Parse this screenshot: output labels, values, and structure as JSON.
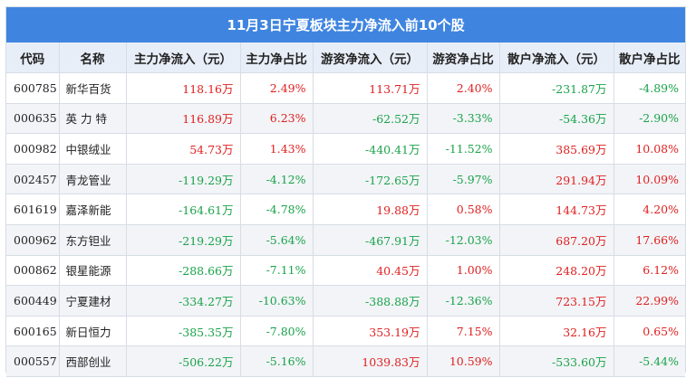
{
  "title": "11月3日宁夏板块主力净流入前10个股",
  "headers": [
    "代码",
    "名称",
    "主力净流入（元）",
    "主力净占比",
    "游资净流入（元）",
    "游资净占比",
    "散户净流入（元）",
    "散户净占比"
  ],
  "rows": [
    {
      "code": "600785",
      "name": "新华百货",
      "main_in": "118.16万",
      "main_pct": "2.49%",
      "hot_in": "113.71万",
      "hot_pct": "2.40%",
      "retail_in": "-231.87万",
      "retail_pct": "-4.89%"
    },
    {
      "code": "000635",
      "name": "英 力 特",
      "main_in": "116.89万",
      "main_pct": "6.23%",
      "hot_in": "-62.52万",
      "hot_pct": "-3.33%",
      "retail_in": "-54.36万",
      "retail_pct": "-2.90%"
    },
    {
      "code": "000982",
      "name": "中银绒业",
      "main_in": "54.73万",
      "main_pct": "1.43%",
      "hot_in": "-440.41万",
      "hot_pct": "-11.52%",
      "retail_in": "385.69万",
      "retail_pct": "10.08%"
    },
    {
      "code": "002457",
      "name": "青龙管业",
      "main_in": "-119.29万",
      "main_pct": "-4.12%",
      "hot_in": "-172.65万",
      "hot_pct": "-5.97%",
      "retail_in": "291.94万",
      "retail_pct": "10.09%"
    },
    {
      "code": "601619",
      "name": "嘉泽新能",
      "main_in": "-164.61万",
      "main_pct": "-4.78%",
      "hot_in": "19.88万",
      "hot_pct": "0.58%",
      "retail_in": "144.73万",
      "retail_pct": "4.20%"
    },
    {
      "code": "000962",
      "name": "东方钽业",
      "main_in": "-219.29万",
      "main_pct": "-5.64%",
      "hot_in": "-467.91万",
      "hot_pct": "-12.03%",
      "retail_in": "687.20万",
      "retail_pct": "17.66%"
    },
    {
      "code": "000862",
      "name": "银星能源",
      "main_in": "-288.66万",
      "main_pct": "-7.11%",
      "hot_in": "40.45万",
      "hot_pct": "1.00%",
      "retail_in": "248.20万",
      "retail_pct": "6.12%"
    },
    {
      "code": "600449",
      "name": "宁夏建材",
      "main_in": "-334.27万",
      "main_pct": "-10.63%",
      "hot_in": "-388.88万",
      "hot_pct": "-12.36%",
      "retail_in": "723.15万",
      "retail_pct": "22.99%"
    },
    {
      "code": "600165",
      "name": "新日恒力",
      "main_in": "-385.35万",
      "main_pct": "-7.80%",
      "hot_in": "353.19万",
      "hot_pct": "7.15%",
      "retail_in": "32.16万",
      "retail_pct": "0.65%"
    },
    {
      "code": "000557",
      "name": "西部创业",
      "main_in": "-506.22万",
      "main_pct": "-5.16%",
      "hot_in": "1039.83万",
      "hot_pct": "10.59%",
      "retail_in": "-533.60万",
      "retail_pct": "-5.44%"
    }
  ],
  "colors": {
    "header_bg": "#3f85e0",
    "positive": "#e02020",
    "negative": "#1aa34a"
  }
}
